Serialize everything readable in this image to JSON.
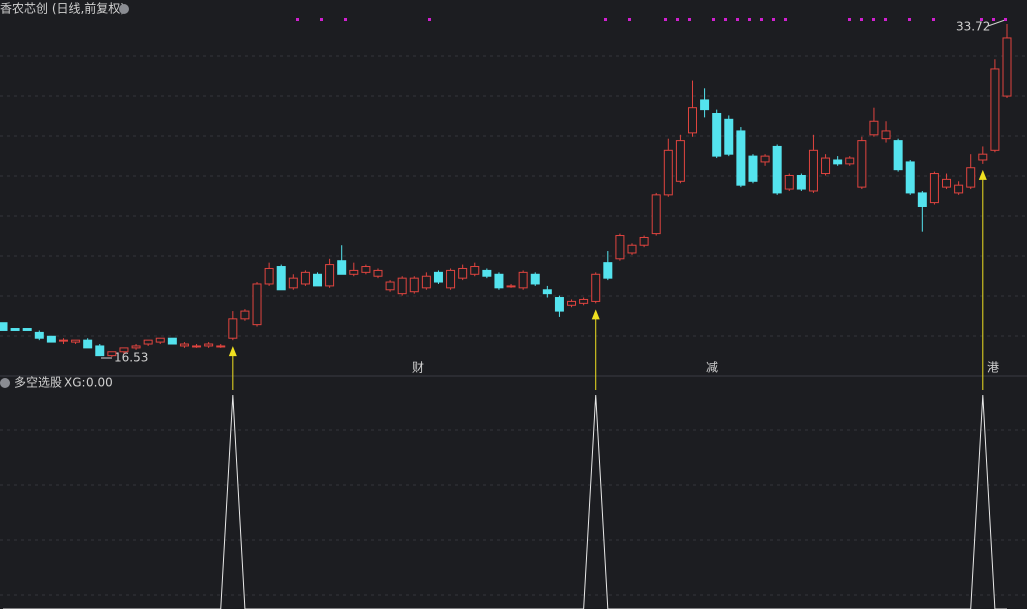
{
  "chart_data": {
    "type": "candlestick",
    "title": "香农芯创 (日线,前复权)",
    "high_label": 33.72,
    "low_label": 16.53,
    "up_color": "#e0443f",
    "down_color": "#54e3ee",
    "events": [
      "财",
      "减",
      "港"
    ],
    "event_colors": [
      "#5ab8e8",
      "#4caf50",
      "#e0443f"
    ],
    "candles": [
      [
        18.3,
        18.3,
        17.9,
        17.9
      ],
      [
        18.0,
        18.0,
        17.9,
        17.9
      ],
      [
        18.0,
        18.0,
        17.9,
        17.9
      ],
      [
        17.8,
        17.9,
        17.4,
        17.5
      ],
      [
        17.6,
        17.6,
        17.3,
        17.3
      ],
      [
        17.4,
        17.5,
        17.2,
        17.4
      ],
      [
        17.3,
        17.4,
        17.2,
        17.4
      ],
      [
        17.4,
        17.5,
        17.0,
        17.0
      ],
      [
        17.1,
        17.2,
        16.6,
        16.6
      ],
      [
        16.6,
        16.8,
        16.53,
        16.8
      ],
      [
        16.8,
        17.0,
        16.7,
        17.0
      ],
      [
        17.0,
        17.2,
        16.9,
        17.1
      ],
      [
        17.2,
        17.4,
        17.1,
        17.4
      ],
      [
        17.3,
        17.5,
        17.2,
        17.5
      ],
      [
        17.5,
        17.5,
        17.2,
        17.2
      ],
      [
        17.1,
        17.3,
        17.0,
        17.2
      ],
      [
        17.1,
        17.2,
        17.0,
        17.1
      ],
      [
        17.1,
        17.3,
        17.0,
        17.2
      ],
      [
        17.1,
        17.2,
        17.0,
        17.1
      ],
      [
        17.5,
        18.9,
        17.4,
        18.5
      ],
      [
        18.5,
        19.0,
        18.4,
        18.9
      ],
      [
        18.2,
        20.4,
        18.1,
        20.3
      ],
      [
        20.3,
        21.4,
        20.2,
        21.1
      ],
      [
        21.2,
        21.3,
        20.0,
        20.0
      ],
      [
        20.1,
        20.8,
        20.0,
        20.6
      ],
      [
        20.3,
        21.0,
        20.2,
        20.9
      ],
      [
        20.8,
        20.9,
        20.2,
        20.2
      ],
      [
        20.2,
        21.6,
        20.1,
        21.3
      ],
      [
        21.5,
        22.3,
        20.8,
        20.8
      ],
      [
        20.8,
        21.4,
        20.7,
        21.0
      ],
      [
        20.9,
        21.3,
        20.8,
        21.2
      ],
      [
        20.7,
        21.1,
        20.6,
        21.0
      ],
      [
        20.0,
        20.5,
        19.9,
        20.4
      ],
      [
        19.8,
        20.7,
        19.7,
        20.6
      ],
      [
        19.9,
        20.7,
        19.8,
        20.6
      ],
      [
        20.1,
        20.9,
        20.0,
        20.7
      ],
      [
        20.9,
        21.0,
        20.3,
        20.4
      ],
      [
        20.1,
        21.1,
        20.0,
        21.0
      ],
      [
        20.6,
        21.3,
        20.5,
        21.1
      ],
      [
        20.8,
        21.4,
        20.7,
        21.2
      ],
      [
        21.0,
        21.1,
        20.6,
        20.7
      ],
      [
        20.8,
        20.9,
        20.0,
        20.1
      ],
      [
        20.2,
        20.3,
        20.1,
        20.2
      ],
      [
        20.1,
        21.0,
        20.0,
        20.9
      ],
      [
        20.8,
        20.9,
        20.2,
        20.3
      ],
      [
        20.0,
        20.2,
        19.6,
        19.8
      ],
      [
        19.6,
        19.7,
        18.6,
        18.9
      ],
      [
        19.2,
        19.5,
        19.1,
        19.4
      ],
      [
        19.3,
        19.6,
        19.2,
        19.5
      ],
      [
        19.4,
        20.9,
        19.3,
        20.8
      ],
      [
        21.4,
        22.0,
        20.5,
        20.6
      ],
      [
        21.6,
        22.9,
        21.5,
        22.8
      ],
      [
        21.9,
        22.4,
        21.8,
        22.3
      ],
      [
        22.3,
        22.8,
        22.2,
        22.7
      ],
      [
        22.9,
        25.0,
        22.8,
        24.9
      ],
      [
        24.9,
        27.8,
        24.8,
        27.2
      ],
      [
        25.6,
        28.0,
        25.5,
        27.7
      ],
      [
        28.1,
        30.8,
        27.9,
        29.4
      ],
      [
        29.8,
        30.4,
        28.9,
        29.3
      ],
      [
        29.1,
        29.3,
        26.8,
        26.9
      ],
      [
        28.8,
        29.0,
        26.9,
        27.0
      ],
      [
        28.2,
        28.4,
        25.3,
        25.4
      ],
      [
        26.9,
        27.0,
        25.5,
        25.6
      ],
      [
        26.6,
        27.0,
        26.4,
        26.9
      ],
      [
        27.4,
        27.5,
        24.9,
        25.0
      ],
      [
        25.2,
        26.0,
        25.1,
        25.9
      ],
      [
        25.9,
        26.0,
        25.1,
        25.2
      ],
      [
        25.1,
        28.0,
        25.0,
        27.2
      ],
      [
        26.0,
        27.0,
        25.9,
        26.8
      ],
      [
        26.7,
        26.9,
        26.4,
        26.5
      ],
      [
        26.5,
        26.9,
        26.4,
        26.8
      ],
      [
        25.3,
        27.9,
        25.2,
        27.7
      ],
      [
        28.0,
        29.4,
        27.9,
        28.7
      ],
      [
        27.8,
        28.7,
        27.6,
        28.2
      ],
      [
        27.7,
        27.8,
        26.1,
        26.2
      ],
      [
        26.6,
        26.7,
        24.9,
        25.0
      ],
      [
        25.0,
        25.1,
        23.0,
        24.3
      ],
      [
        24.5,
        26.1,
        24.4,
        26.0
      ],
      [
        25.3,
        26.0,
        25.2,
        25.7
      ],
      [
        25.0,
        25.6,
        24.9,
        25.4
      ],
      [
        25.3,
        27.0,
        25.2,
        26.3
      ],
      [
        26.7,
        27.4,
        26.5,
        27.0
      ],
      [
        27.2,
        31.9,
        27.1,
        31.4
      ],
      [
        30.0,
        33.72,
        29.9,
        33.0
      ]
    ],
    "indicator_name": "多空选股",
    "indicator_key": "XG:",
    "indicator_value": {
      "value": 0,
      "label": "0.00"
    },
    "xg": [
      0,
      0,
      0,
      0,
      0,
      0,
      0,
      0,
      0,
      0,
      0,
      0,
      0,
      0,
      0,
      0,
      0,
      0,
      0,
      1,
      0,
      0,
      0,
      0,
      0,
      0,
      0,
      0,
      0,
      0,
      0,
      0,
      0,
      0,
      0,
      0,
      0,
      0,
      0,
      0,
      0,
      0,
      0,
      0,
      0,
      0,
      0,
      0,
      0,
      1,
      0,
      0,
      0,
      0,
      0,
      0,
      0,
      0,
      0,
      0,
      0,
      0,
      0,
      0,
      0,
      0,
      0,
      0,
      0,
      0,
      0,
      0,
      0,
      0,
      0,
      0,
      0,
      0,
      0,
      0,
      0,
      1,
      0,
      0
    ]
  }
}
